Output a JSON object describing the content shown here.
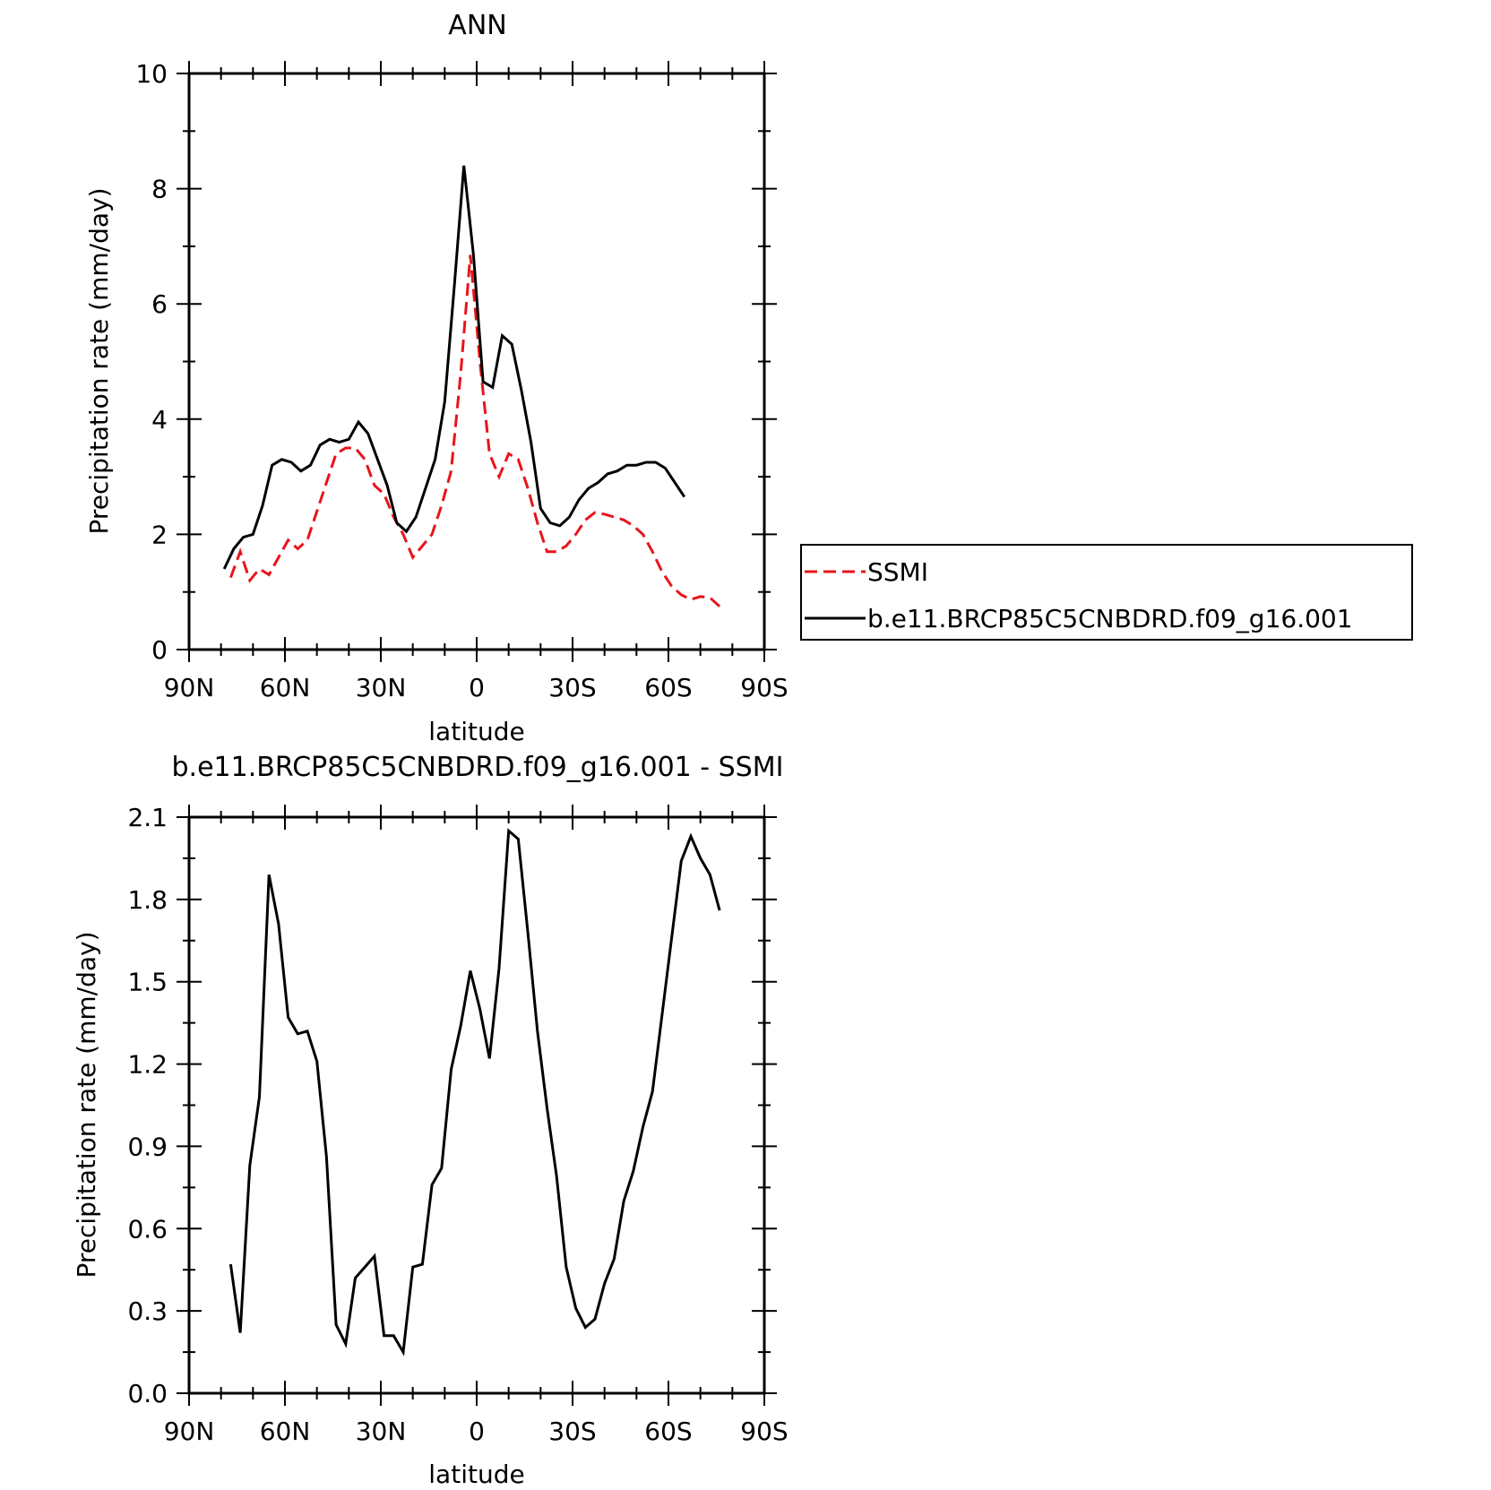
{
  "chart_data": [
    {
      "type": "line",
      "title": "ANN",
      "xlabel": "latitude",
      "ylabel": "Precipitation rate (mm/day)",
      "xlim": [
        90,
        -90
      ],
      "ylim": [
        0,
        10
      ],
      "x_ticks": [
        90,
        60,
        30,
        0,
        -30,
        -60,
        -90
      ],
      "x_tick_labels": [
        "90N",
        "60N",
        "30N",
        "0",
        "30S",
        "60S",
        "90S"
      ],
      "y_ticks": [
        0,
        2,
        4,
        6,
        8,
        10
      ],
      "y_tick_labels": [
        "0",
        "2",
        "4",
        "6",
        "8",
        "10"
      ],
      "legend_position": "right",
      "series": [
        {
          "name": "SSMI",
          "color": "#e8141b",
          "dash": "dashed",
          "x": [
            77,
            74,
            71,
            68,
            65,
            62,
            59,
            56,
            53,
            50,
            47,
            44,
            41,
            38,
            35,
            32,
            29,
            26,
            23,
            20,
            17,
            14,
            11,
            8,
            5,
            2,
            -1,
            -4,
            -7,
            -10,
            -13,
            -16,
            -19,
            -22,
            -25,
            -28,
            -31,
            -34,
            -37,
            -40,
            -43,
            -46,
            -49,
            -52,
            -55,
            -58,
            -61,
            -64,
            -67,
            -70,
            -73,
            -76
          ],
          "y": [
            1.25,
            1.7,
            1.2,
            1.4,
            1.3,
            1.6,
            1.9,
            1.75,
            1.9,
            2.4,
            2.9,
            3.4,
            3.5,
            3.5,
            3.3,
            2.85,
            2.7,
            2.3,
            2.0,
            1.6,
            1.8,
            2.0,
            2.5,
            3.1,
            4.8,
            6.85,
            5.0,
            3.4,
            3.0,
            3.4,
            3.3,
            2.8,
            2.2,
            1.7,
            1.7,
            1.8,
            2.0,
            2.25,
            2.38,
            2.35,
            2.3,
            2.25,
            2.15,
            2.0,
            1.7,
            1.35,
            1.1,
            0.95,
            0.87,
            0.92,
            0.9,
            0.75
          ]
        },
        {
          "name": "b.e11.BRCP85C5CNBDRD.f09_g16.001",
          "color": "#000000",
          "dash": "solid",
          "x": [
            79,
            76,
            73,
            70,
            67,
            64,
            61,
            58,
            55,
            52,
            49,
            46,
            43,
            40,
            37,
            34,
            31,
            28,
            25,
            22,
            19,
            16,
            13,
            10,
            7,
            4,
            1,
            -2,
            -5,
            -8,
            -11,
            -14,
            -17,
            -20,
            -23,
            -26,
            -29,
            -32,
            -35,
            -38,
            -41,
            -44,
            -47,
            -50,
            -53,
            -56,
            -59,
            -62,
            -65
          ],
          "y": [
            1.4,
            1.75,
            1.95,
            2.0,
            2.5,
            3.2,
            3.3,
            3.25,
            3.1,
            3.2,
            3.55,
            3.65,
            3.6,
            3.65,
            3.95,
            3.75,
            3.3,
            2.85,
            2.2,
            2.05,
            2.3,
            2.8,
            3.3,
            4.3,
            6.3,
            8.4,
            6.85,
            4.65,
            4.55,
            5.45,
            5.3,
            4.5,
            3.6,
            2.45,
            2.2,
            2.15,
            2.3,
            2.6,
            2.8,
            2.9,
            3.05,
            3.1,
            3.2,
            3.2,
            3.25,
            3.25,
            3.15,
            2.9,
            2.65
          ]
        }
      ]
    },
    {
      "type": "line",
      "title": "b.e11.BRCP85C5CNBDRD.f09_g16.001 - SSMI",
      "xlabel": "latitude",
      "ylabel": "Precipitation rate (mm/day)",
      "xlim": [
        90,
        -90
      ],
      "ylim": [
        0.0,
        2.1
      ],
      "x_ticks": [
        90,
        60,
        30,
        0,
        -30,
        -60,
        -90
      ],
      "x_tick_labels": [
        "90N",
        "60N",
        "30N",
        "0",
        "30S",
        "60S",
        "90S"
      ],
      "y_ticks": [
        0.0,
        0.3,
        0.6,
        0.9,
        1.2,
        1.5,
        1.8,
        2.1
      ],
      "y_tick_labels": [
        "0.0",
        "0.3",
        "0.6",
        "0.9",
        "1.2",
        "1.5",
        "1.8",
        "2.1"
      ],
      "series": [
        {
          "color": "#000000",
          "dash": "solid",
          "x": [
            77,
            74,
            71,
            68,
            65,
            62,
            59,
            56,
            53,
            50,
            47,
            44,
            41,
            38,
            35,
            32,
            29,
            26,
            23,
            20,
            17,
            14,
            11,
            8,
            5,
            2,
            -1,
            -4,
            -7,
            -10,
            -13,
            -16,
            -19,
            -22,
            -25,
            -28,
            -31,
            -34,
            -37,
            -40,
            -43,
            -46,
            -49,
            -52,
            -55,
            -58,
            -61,
            -64,
            -67,
            -70,
            -73,
            -76
          ],
          "y": [
            0.47,
            0.22,
            0.83,
            1.08,
            1.89,
            1.71,
            1.37,
            1.31,
            1.32,
            1.21,
            0.86,
            0.25,
            0.18,
            0.42,
            0.46,
            0.5,
            0.21,
            0.21,
            0.15,
            0.46,
            0.47,
            0.76,
            0.82,
            1.18,
            1.34,
            1.54,
            1.4,
            1.22,
            1.55,
            2.05,
            2.02,
            1.68,
            1.32,
            1.04,
            0.79,
            0.46,
            0.31,
            0.24,
            0.27,
            0.4,
            0.49,
            0.7,
            0.81,
            0.97,
            1.1,
            1.38,
            1.66,
            1.94,
            2.03,
            1.95,
            1.89,
            1.76
          ]
        }
      ]
    }
  ]
}
